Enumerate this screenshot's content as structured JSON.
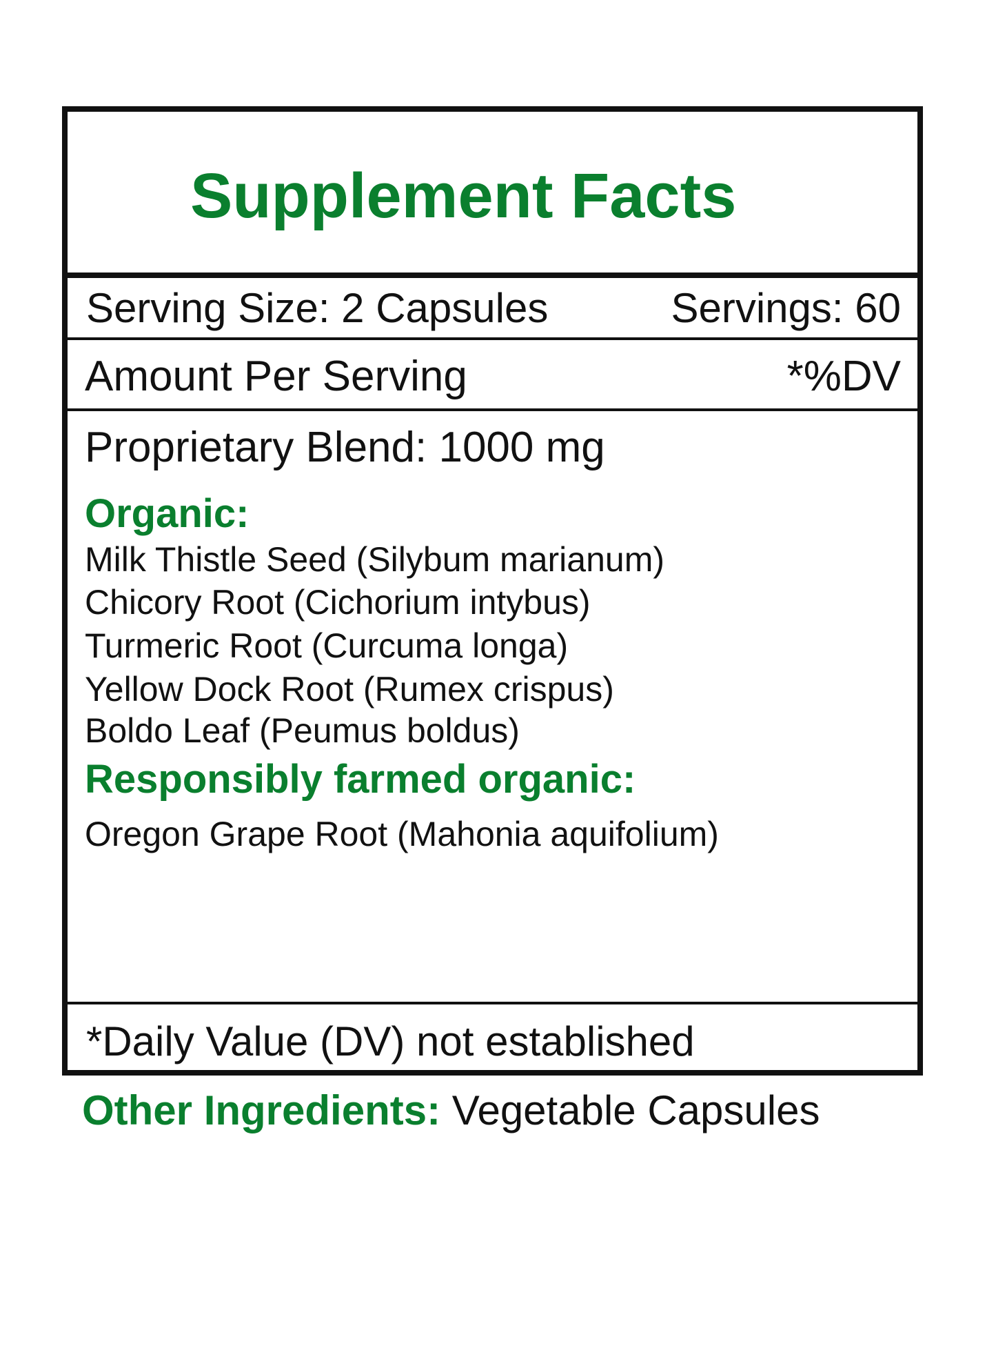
{
  "title": "Supplement Facts",
  "serving_size": "Serving Size: 2 Capsules",
  "servings": "Servings: 60",
  "amount_per_serving": "Amount Per Serving",
  "dv_header": "*%DV",
  "blend": "Proprietary Blend: 1000 mg",
  "organic_heading": "Organic:",
  "organic_items": [
    "Milk Thistle Seed (Silybum marianum)",
    "Chicory Root (Cichorium intybus)",
    "Turmeric Root (Curcuma longa)",
    "Yellow Dock Root (Rumex crispus)",
    "Boldo Leaf (Peumus boldus)"
  ],
  "farmed_heading": "Responsibly farmed organic:",
  "farmed_items": [
    "Oregon Grape Root (Mahonia aquifolium)"
  ],
  "footnote": "*Daily Value (DV) not established",
  "other_label": "Other Ingredients:",
  "other_value": "Vegetable Capsules",
  "colors": {
    "accent": "#0a7f2e",
    "text": "#111111"
  }
}
